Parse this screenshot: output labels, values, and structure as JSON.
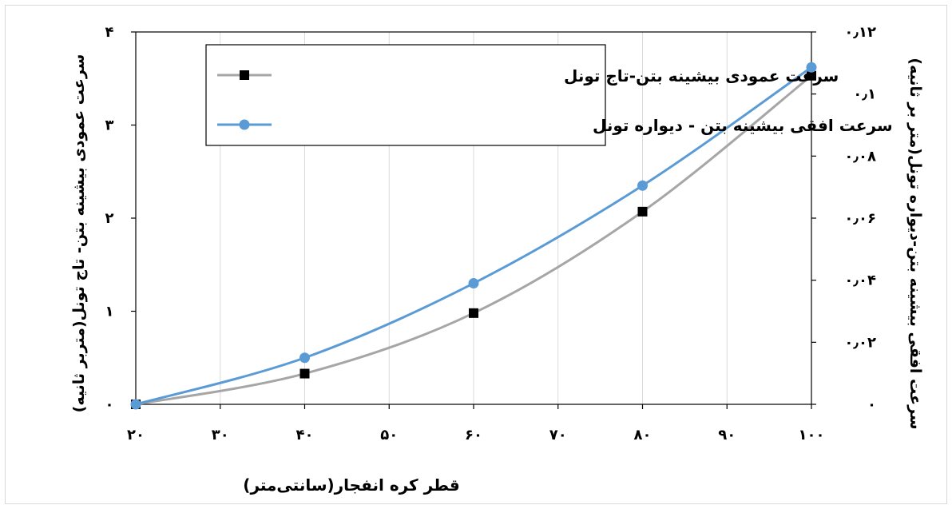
{
  "chart_data": {
    "type": "line",
    "x": [
      20,
      40,
      60,
      80,
      100
    ],
    "xlim": [
      20,
      100
    ],
    "x_ticks": [
      20,
      30,
      40,
      50,
      60,
      70,
      80,
      90,
      100
    ],
    "x_tick_labels": [
      "۲۰",
      "۳۰",
      "۴۰",
      "۵۰",
      "۶۰",
      "۷۰",
      "۸۰",
      "۹۰",
      "۱۰۰"
    ],
    "xlabel": "قطر کره انفجار(سانتی‌متر)",
    "y_left": {
      "label": "سرعت عمودی بیشینه بتن- تاج تونل(متربر ثانیه)",
      "lim": [
        0,
        4
      ],
      "ticks": [
        0,
        1,
        2,
        3,
        4
      ],
      "tick_labels": [
        "۰",
        "۱",
        "۲",
        "۳",
        "۴"
      ]
    },
    "y_right": {
      "label": "سرعت افقی بیشینه بتن-دیواره تونل(متر بر ثانیه)",
      "lim": [
        0,
        0.12
      ],
      "ticks": [
        0,
        0.02,
        0.04,
        0.06,
        0.08,
        0.1,
        0.12
      ],
      "tick_labels": [
        "۰",
        "۰٫۰۲",
        "۰٫۰۴",
        "۰٫۰۶",
        "۰٫۰۸",
        "۰٫۱",
        "۰٫۱۲"
      ]
    },
    "series": [
      {
        "name": "سرعت عمودی بیشینه بتن-تاج تونل",
        "axis": "left",
        "values": [
          0,
          0.33,
          0.98,
          2.07,
          3.53
        ],
        "color": "#a6a6a6",
        "marker": "square",
        "marker_color": "#000000"
      },
      {
        "name": "سرعت افقی بیشینه بتن - دیواره تونل",
        "axis": "right",
        "values": [
          0,
          0.015,
          0.039,
          0.0705,
          0.1086
        ],
        "color": "#5b9bd5",
        "marker": "circle",
        "marker_color": "#5b9bd5"
      }
    ],
    "grid": "vertical",
    "legend_position": "top-left"
  }
}
